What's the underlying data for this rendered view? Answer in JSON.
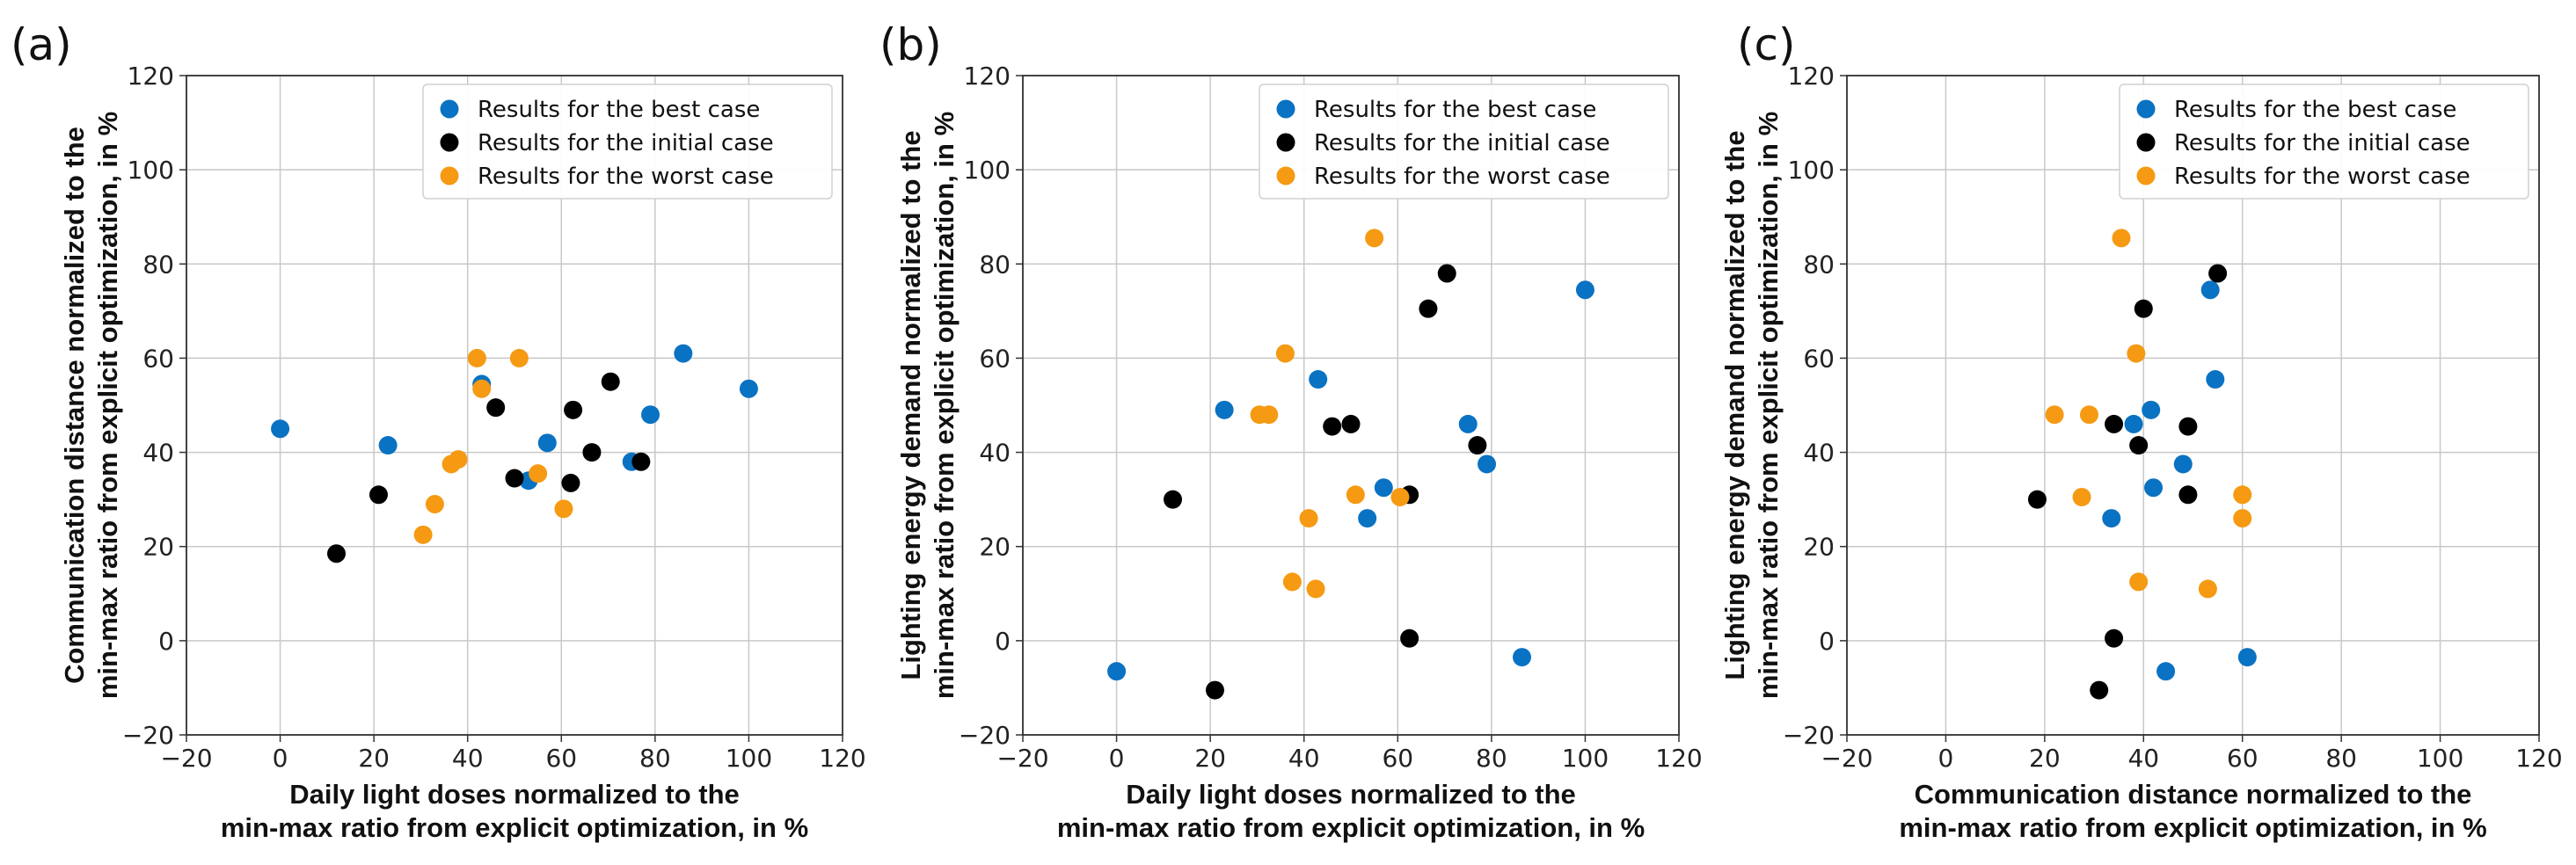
{
  "figure_title": "",
  "colors": {
    "best": "#0a72c2",
    "initial": "#000000",
    "worst": "#f59a12",
    "grid": "#c8c8c8",
    "axis": "#333333"
  },
  "chart_data": [
    {
      "panel": "(a)",
      "type": "scatter",
      "title": "",
      "xlabel": [
        "Daily light doses normalized to the",
        "min-max ratio from explicit optimization, in %"
      ],
      "ylabel": [
        "Communication distance normalized to the",
        "min-max ratio from explicit optimization, in %"
      ],
      "xlim": [
        -20,
        120
      ],
      "ylim": [
        -20,
        120
      ],
      "xticks": [
        -20,
        0,
        20,
        40,
        60,
        80,
        100,
        120
      ],
      "yticks": [
        -20,
        0,
        20,
        40,
        60,
        80,
        100,
        120
      ],
      "grid": true,
      "legend_position": "top-right",
      "series": [
        {
          "name": "Results for the best case",
          "color_key": "best",
          "points": [
            [
              0,
              45
            ],
            [
              23,
              41.5
            ],
            [
              43,
              54.5
            ],
            [
              53,
              34
            ],
            [
              57,
              42
            ],
            [
              75,
              38
            ],
            [
              79,
              48
            ],
            [
              86,
              61
            ],
            [
              100,
              53.5
            ]
          ]
        },
        {
          "name": "Results for the initial case",
          "color_key": "initial",
          "points": [
            [
              12,
              18.5
            ],
            [
              21,
              31
            ],
            [
              46,
              49.5
            ],
            [
              50,
              34.5
            ],
            [
              62,
              33.5
            ],
            [
              62.5,
              49
            ],
            [
              66.5,
              40
            ],
            [
              70.5,
              55
            ],
            [
              77,
              38
            ]
          ]
        },
        {
          "name": "Results for the worst case",
          "color_key": "worst",
          "points": [
            [
              30.5,
              22.5
            ],
            [
              33,
              29
            ],
            [
              36.5,
              37.5
            ],
            [
              38,
              38.5
            ],
            [
              42,
              60
            ],
            [
              43,
              53.5
            ],
            [
              51,
              60
            ],
            [
              55,
              35.5
            ],
            [
              60.5,
              28
            ]
          ]
        }
      ]
    },
    {
      "panel": "(b)",
      "type": "scatter",
      "title": "",
      "xlabel": [
        "Daily light doses normalized to the",
        "min-max ratio from explicit optimization, in %"
      ],
      "ylabel": [
        "Lighting energy demand normalized to the",
        "min-max ratio from explicit optimization, in %"
      ],
      "xlim": [
        -20,
        120
      ],
      "ylim": [
        -20,
        120
      ],
      "xticks": [
        -20,
        0,
        20,
        40,
        60,
        80,
        100,
        120
      ],
      "yticks": [
        -20,
        0,
        20,
        40,
        60,
        80,
        100,
        120
      ],
      "grid": true,
      "legend_position": "top-right",
      "series": [
        {
          "name": "Results for the best case",
          "color_key": "best",
          "points": [
            [
              0,
              -6.5
            ],
            [
              23,
              49
            ],
            [
              43,
              55.5
            ],
            [
              53.5,
              26
            ],
            [
              57,
              32.5
            ],
            [
              75,
              46
            ],
            [
              79,
              37.5
            ],
            [
              86.5,
              -3.5
            ],
            [
              100,
              74.5
            ]
          ]
        },
        {
          "name": "Results for the initial case",
          "color_key": "initial",
          "points": [
            [
              12,
              30
            ],
            [
              21,
              -10.5
            ],
            [
              46,
              45.5
            ],
            [
              50,
              46
            ],
            [
              62.5,
              31
            ],
            [
              62.5,
              0.5
            ],
            [
              66.5,
              70.5
            ],
            [
              70.5,
              78
            ],
            [
              77,
              41.5
            ]
          ]
        },
        {
          "name": "Results for the worst case",
          "color_key": "worst",
          "points": [
            [
              30.5,
              48
            ],
            [
              32.5,
              48
            ],
            [
              36,
              61
            ],
            [
              37.5,
              12.5
            ],
            [
              41,
              26
            ],
            [
              42.5,
              11
            ],
            [
              51,
              31
            ],
            [
              55,
              85.5
            ],
            [
              60.5,
              30.5
            ]
          ]
        }
      ]
    },
    {
      "panel": "(c)",
      "type": "scatter",
      "title": "",
      "xlabel": [
        "Communication distance normalized to the",
        "min-max ratio from explicit optimization, in %"
      ],
      "ylabel": [
        "Lighting energy demand normalized to the",
        "min-max ratio from explicit optimization, in %"
      ],
      "xlim": [
        -20,
        120
      ],
      "ylim": [
        -20,
        120
      ],
      "xticks": [
        -20,
        0,
        20,
        40,
        60,
        80,
        100,
        120
      ],
      "yticks": [
        -20,
        0,
        20,
        40,
        60,
        80,
        100,
        120
      ],
      "grid": true,
      "legend_position": "top-right",
      "series": [
        {
          "name": "Results for the best case",
          "color_key": "best",
          "points": [
            [
              44.5,
              -6.5
            ],
            [
              41.5,
              49
            ],
            [
              54.5,
              55.5
            ],
            [
              33.5,
              26
            ],
            [
              42,
              32.5
            ],
            [
              38,
              46
            ],
            [
              48,
              37.5
            ],
            [
              61,
              -3.5
            ],
            [
              53.5,
              74.5
            ]
          ]
        },
        {
          "name": "Results for the initial case",
          "color_key": "initial",
          "points": [
            [
              18.5,
              30
            ],
            [
              31,
              -10.5
            ],
            [
              34,
              46
            ],
            [
              34,
              0.5
            ],
            [
              39,
              41.5
            ],
            [
              40,
              70.5
            ],
            [
              49,
              45.5
            ],
            [
              49,
              31
            ],
            [
              55,
              78
            ]
          ]
        },
        {
          "name": "Results for the worst case",
          "color_key": "worst",
          "points": [
            [
              22,
              48
            ],
            [
              27.5,
              30.5
            ],
            [
              29,
              48
            ],
            [
              35.5,
              85.5
            ],
            [
              38.5,
              61
            ],
            [
              39,
              12.5
            ],
            [
              53,
              11
            ],
            [
              60,
              31
            ],
            [
              60,
              26
            ]
          ]
        }
      ]
    }
  ]
}
